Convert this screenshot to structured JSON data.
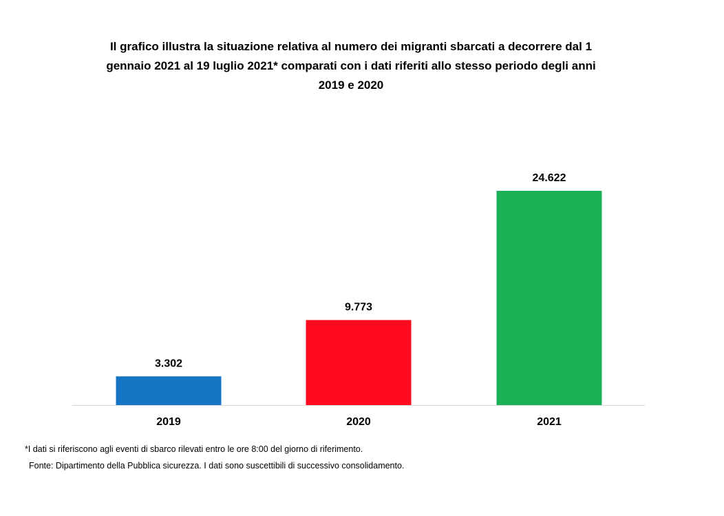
{
  "chart_data": {
    "type": "bar",
    "title_lines": [
      "Il grafico illustra la situazione relativa al numero dei migranti sbarcati a decorrere dal 1",
      "gennaio 2021 al 19 luglio 2021* comparati con i dati riferiti allo stesso periodo degli anni",
      "2019  e 2020"
    ],
    "categories": [
      "2019",
      "2020",
      "2021"
    ],
    "values": [
      3302,
      9773,
      24622
    ],
    "value_labels": [
      "3.302",
      "9.773",
      "24.622"
    ],
    "colors": [
      "#1574c4",
      "#ff0a1e",
      "#1bb055"
    ],
    "ylim": [
      0,
      24622
    ],
    "grid": false,
    "legend": "none"
  },
  "footnote": "*I dati si riferiscono agli eventi di sbarco rilevati entro le ore 8:00 del giorno di riferimento.",
  "source": "Fonte: Dipartimento della Pubblica sicurezza. I dati sono suscettibili di successivo consolidamento."
}
